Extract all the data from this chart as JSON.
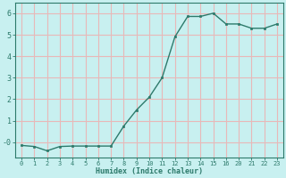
{
  "x": [
    0,
    1,
    2,
    3,
    4,
    5,
    6,
    7,
    8,
    9,
    10,
    11,
    12,
    13,
    14,
    15,
    16,
    20,
    21,
    22,
    23
  ],
  "y": [
    -0.15,
    -0.2,
    -0.4,
    -0.2,
    -0.18,
    -0.18,
    -0.18,
    -0.18,
    0.75,
    1.5,
    2.1,
    3.0,
    4.9,
    5.85,
    5.85,
    6.0,
    5.5,
    5.5,
    5.3,
    5.3,
    5.5
  ],
  "x_evenly_spaced": [
    0,
    1,
    2,
    3,
    4,
    5,
    6,
    7,
    8,
    9,
    10,
    11,
    12,
    13,
    14,
    15,
    16,
    17,
    18,
    19,
    20
  ],
  "line_color": "#2d7a6b",
  "marker_color": "#2d7a6b",
  "bg_color": "#c8f0f0",
  "grid_color": "#e8b8b8",
  "xlabel": "Humidex (Indice chaleur)",
  "ylim": [
    -0.7,
    6.5
  ],
  "yticks": [
    0,
    1,
    2,
    3,
    4,
    5,
    6
  ],
  "ytick_labels": [
    "-0",
    "1",
    "2",
    "3",
    "4",
    "5",
    "6"
  ],
  "xtick_labels": [
    "0",
    "1",
    "2",
    "3",
    "4",
    "5",
    "6",
    "7",
    "8",
    "9",
    "10",
    "11",
    "12",
    "13",
    "14",
    "15",
    "16",
    "20",
    "21",
    "22",
    "23"
  ]
}
